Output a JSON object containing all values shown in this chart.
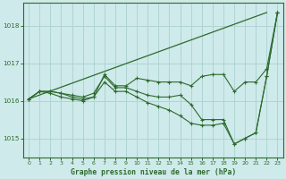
{
  "title": "Graphe pression niveau de la mer (hPa)",
  "background_color": "#ceeaea",
  "grid_color": "#b0d4d4",
  "line_color": "#2d6a2d",
  "xlim": [
    -0.5,
    23.5
  ],
  "ylim": [
    1014.5,
    1018.6
  ],
  "yticks": [
    1015,
    1016,
    1017,
    1018
  ],
  "xticks": [
    0,
    1,
    2,
    3,
    4,
    5,
    6,
    7,
    8,
    9,
    10,
    11,
    12,
    13,
    14,
    15,
    16,
    17,
    18,
    19,
    20,
    21,
    22,
    23
  ],
  "series_no_marker": [
    [
      1016.05,
      1016.17,
      1016.28,
      1016.4,
      1016.52,
      1016.63,
      1016.75,
      1016.87,
      1016.98,
      1017.1,
      1017.22,
      1017.33,
      1017.45,
      1017.57,
      1017.68,
      1017.8,
      1017.92,
      1018.03,
      1018.15,
      1018.27,
      1018.38,
      1018.5,
      1018.3,
      1018.35
    ]
  ],
  "series_with_marker": [
    [
      1016.05,
      1016.25,
      1016.25,
      1016.2,
      1016.15,
      1016.1,
      1016.2,
      1016.65,
      1016.35,
      1016.35,
      1016.25,
      1016.15,
      1016.1,
      1016.1,
      1016.15,
      1015.9,
      1015.5,
      1015.5,
      1015.5,
      1014.85,
      1015.0,
      1015.15,
      1016.65,
      1018.35
    ],
    [
      1016.05,
      1016.25,
      1016.25,
      1016.2,
      1016.1,
      1016.05,
      1016.1,
      1016.5,
      1016.25,
      1016.25,
      1016.1,
      1015.95,
      1015.85,
      1015.75,
      1015.6,
      1015.4,
      1015.35,
      1015.35,
      1015.4,
      1014.85,
      1015.0,
      1015.15,
      1016.65,
      1018.35
    ],
    [
      1016.05,
      1016.25,
      1016.2,
      1016.1,
      1016.05,
      1016.0,
      1016.1,
      1016.7,
      1016.4,
      1016.4,
      1016.6,
      1016.55,
      1016.5,
      1016.5,
      1016.5,
      1016.4,
      1016.65,
      1016.7,
      1016.7,
      1016.25,
      1016.5,
      1016.5,
      1016.85,
      1018.35
    ]
  ]
}
